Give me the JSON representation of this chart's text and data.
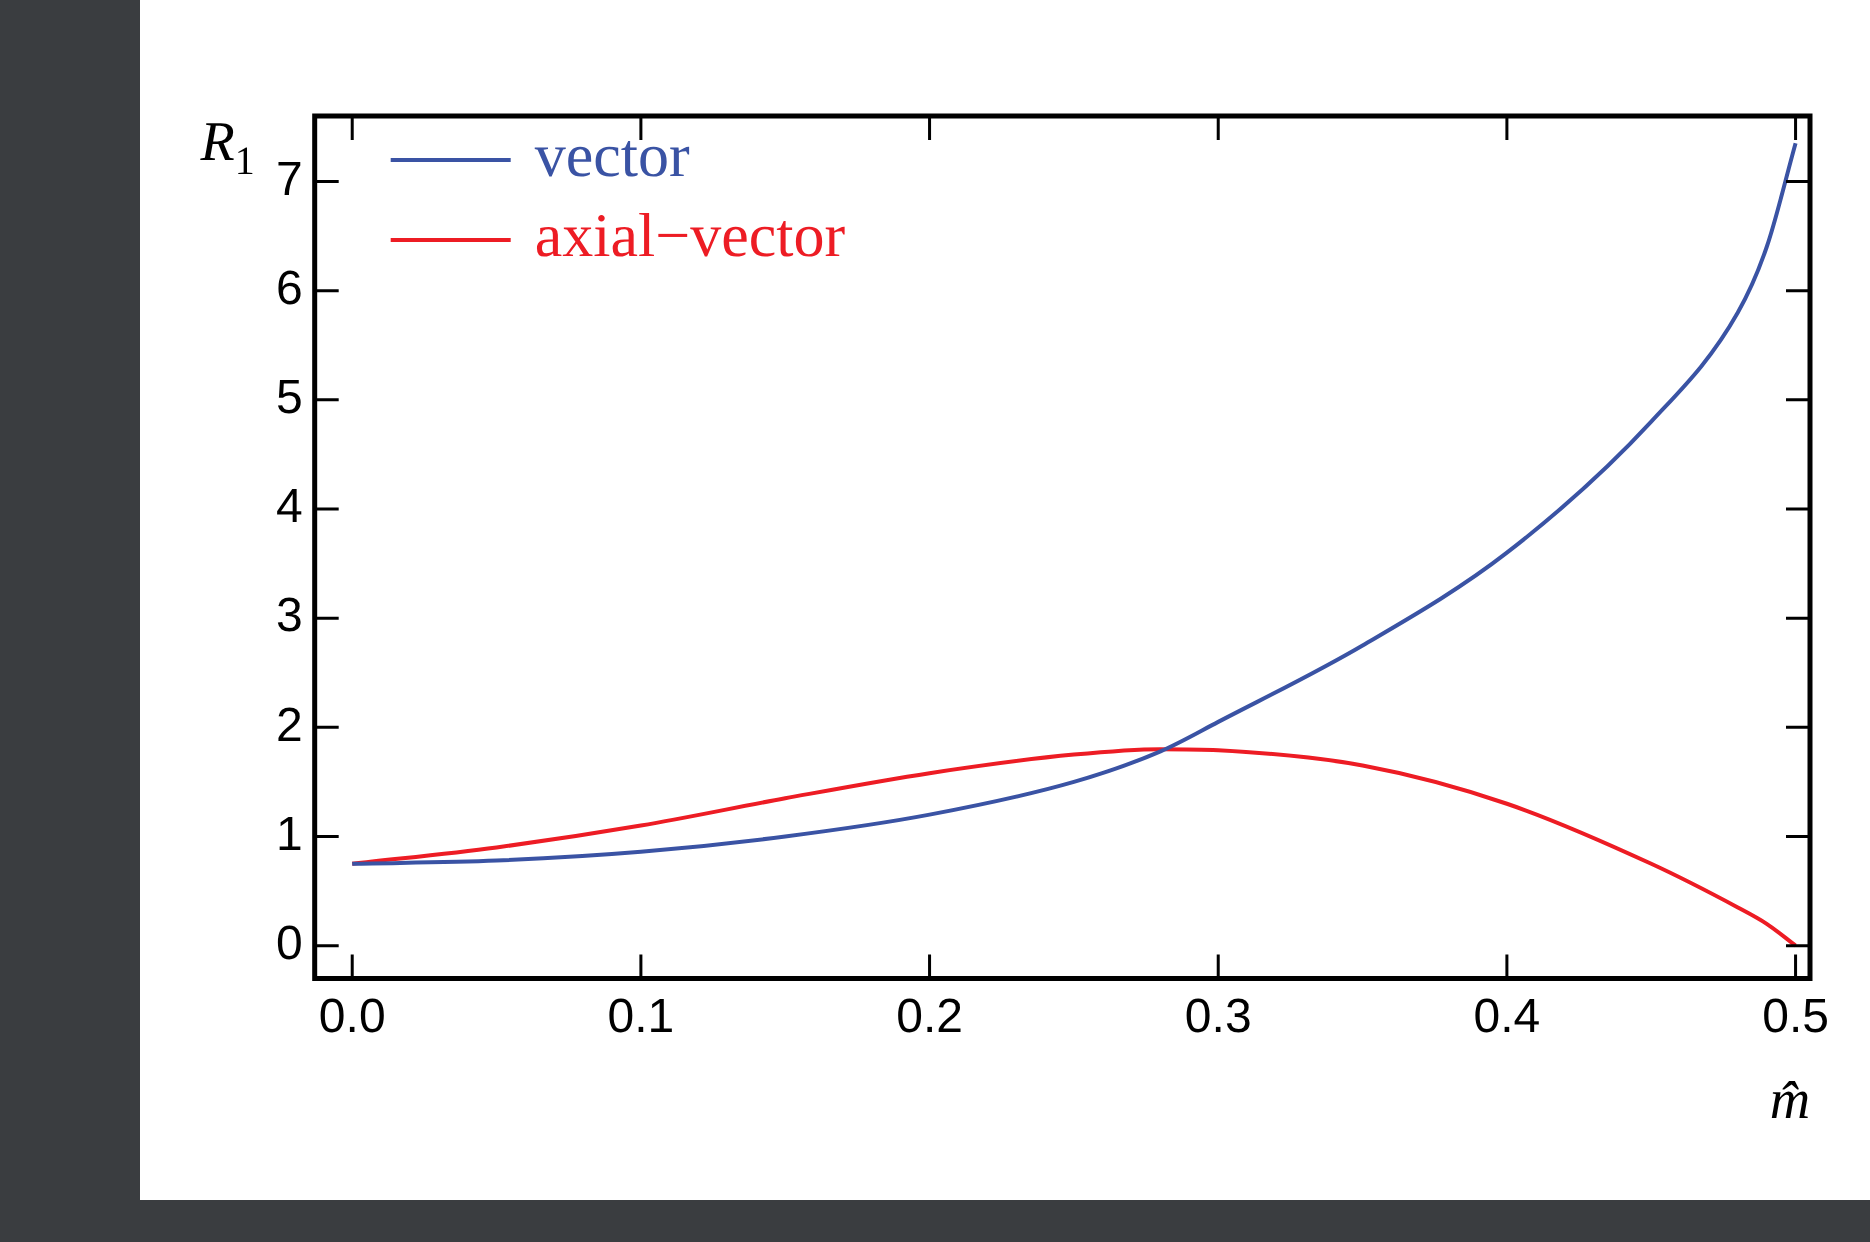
{
  "chart_data": {
    "type": "line",
    "xlabel": "m̂",
    "ylabel": "R$_{1}$",
    "x": [
      0,
      0.05,
      0.1,
      0.15,
      0.2,
      0.25,
      0.28,
      0.3,
      0.35,
      0.4,
      0.45,
      0.48,
      0.49,
      0.5
    ],
    "series": [
      {
        "name": "vector",
        "color": "#3a53a4",
        "values": [
          0.75,
          0.78,
          0.86,
          1.0,
          1.2,
          1.5,
          1.78,
          2.05,
          2.75,
          3.6,
          4.8,
          5.8,
          6.4,
          7.35
        ]
      },
      {
        "name": "axial−vector",
        "color": "#ed1c24",
        "values": [
          0.75,
          0.9,
          1.1,
          1.35,
          1.58,
          1.75,
          1.8,
          1.79,
          1.65,
          1.3,
          0.75,
          0.35,
          0.2,
          0.0
        ]
      }
    ],
    "xlim": [
      -0.013,
      0.505
    ],
    "xticks": [
      {
        "value": 0,
        "label": "0.0"
      },
      0.1,
      0.2,
      0.3,
      0.4,
      0.5
    ],
    "ylim": [
      -0.3,
      7.6
    ],
    "yticks": [
      0,
      1,
      2,
      3,
      4,
      5,
      6,
      7
    ],
    "legend": "top left",
    "grid": false,
    "marker": "none",
    "line_style": "solid"
  }
}
